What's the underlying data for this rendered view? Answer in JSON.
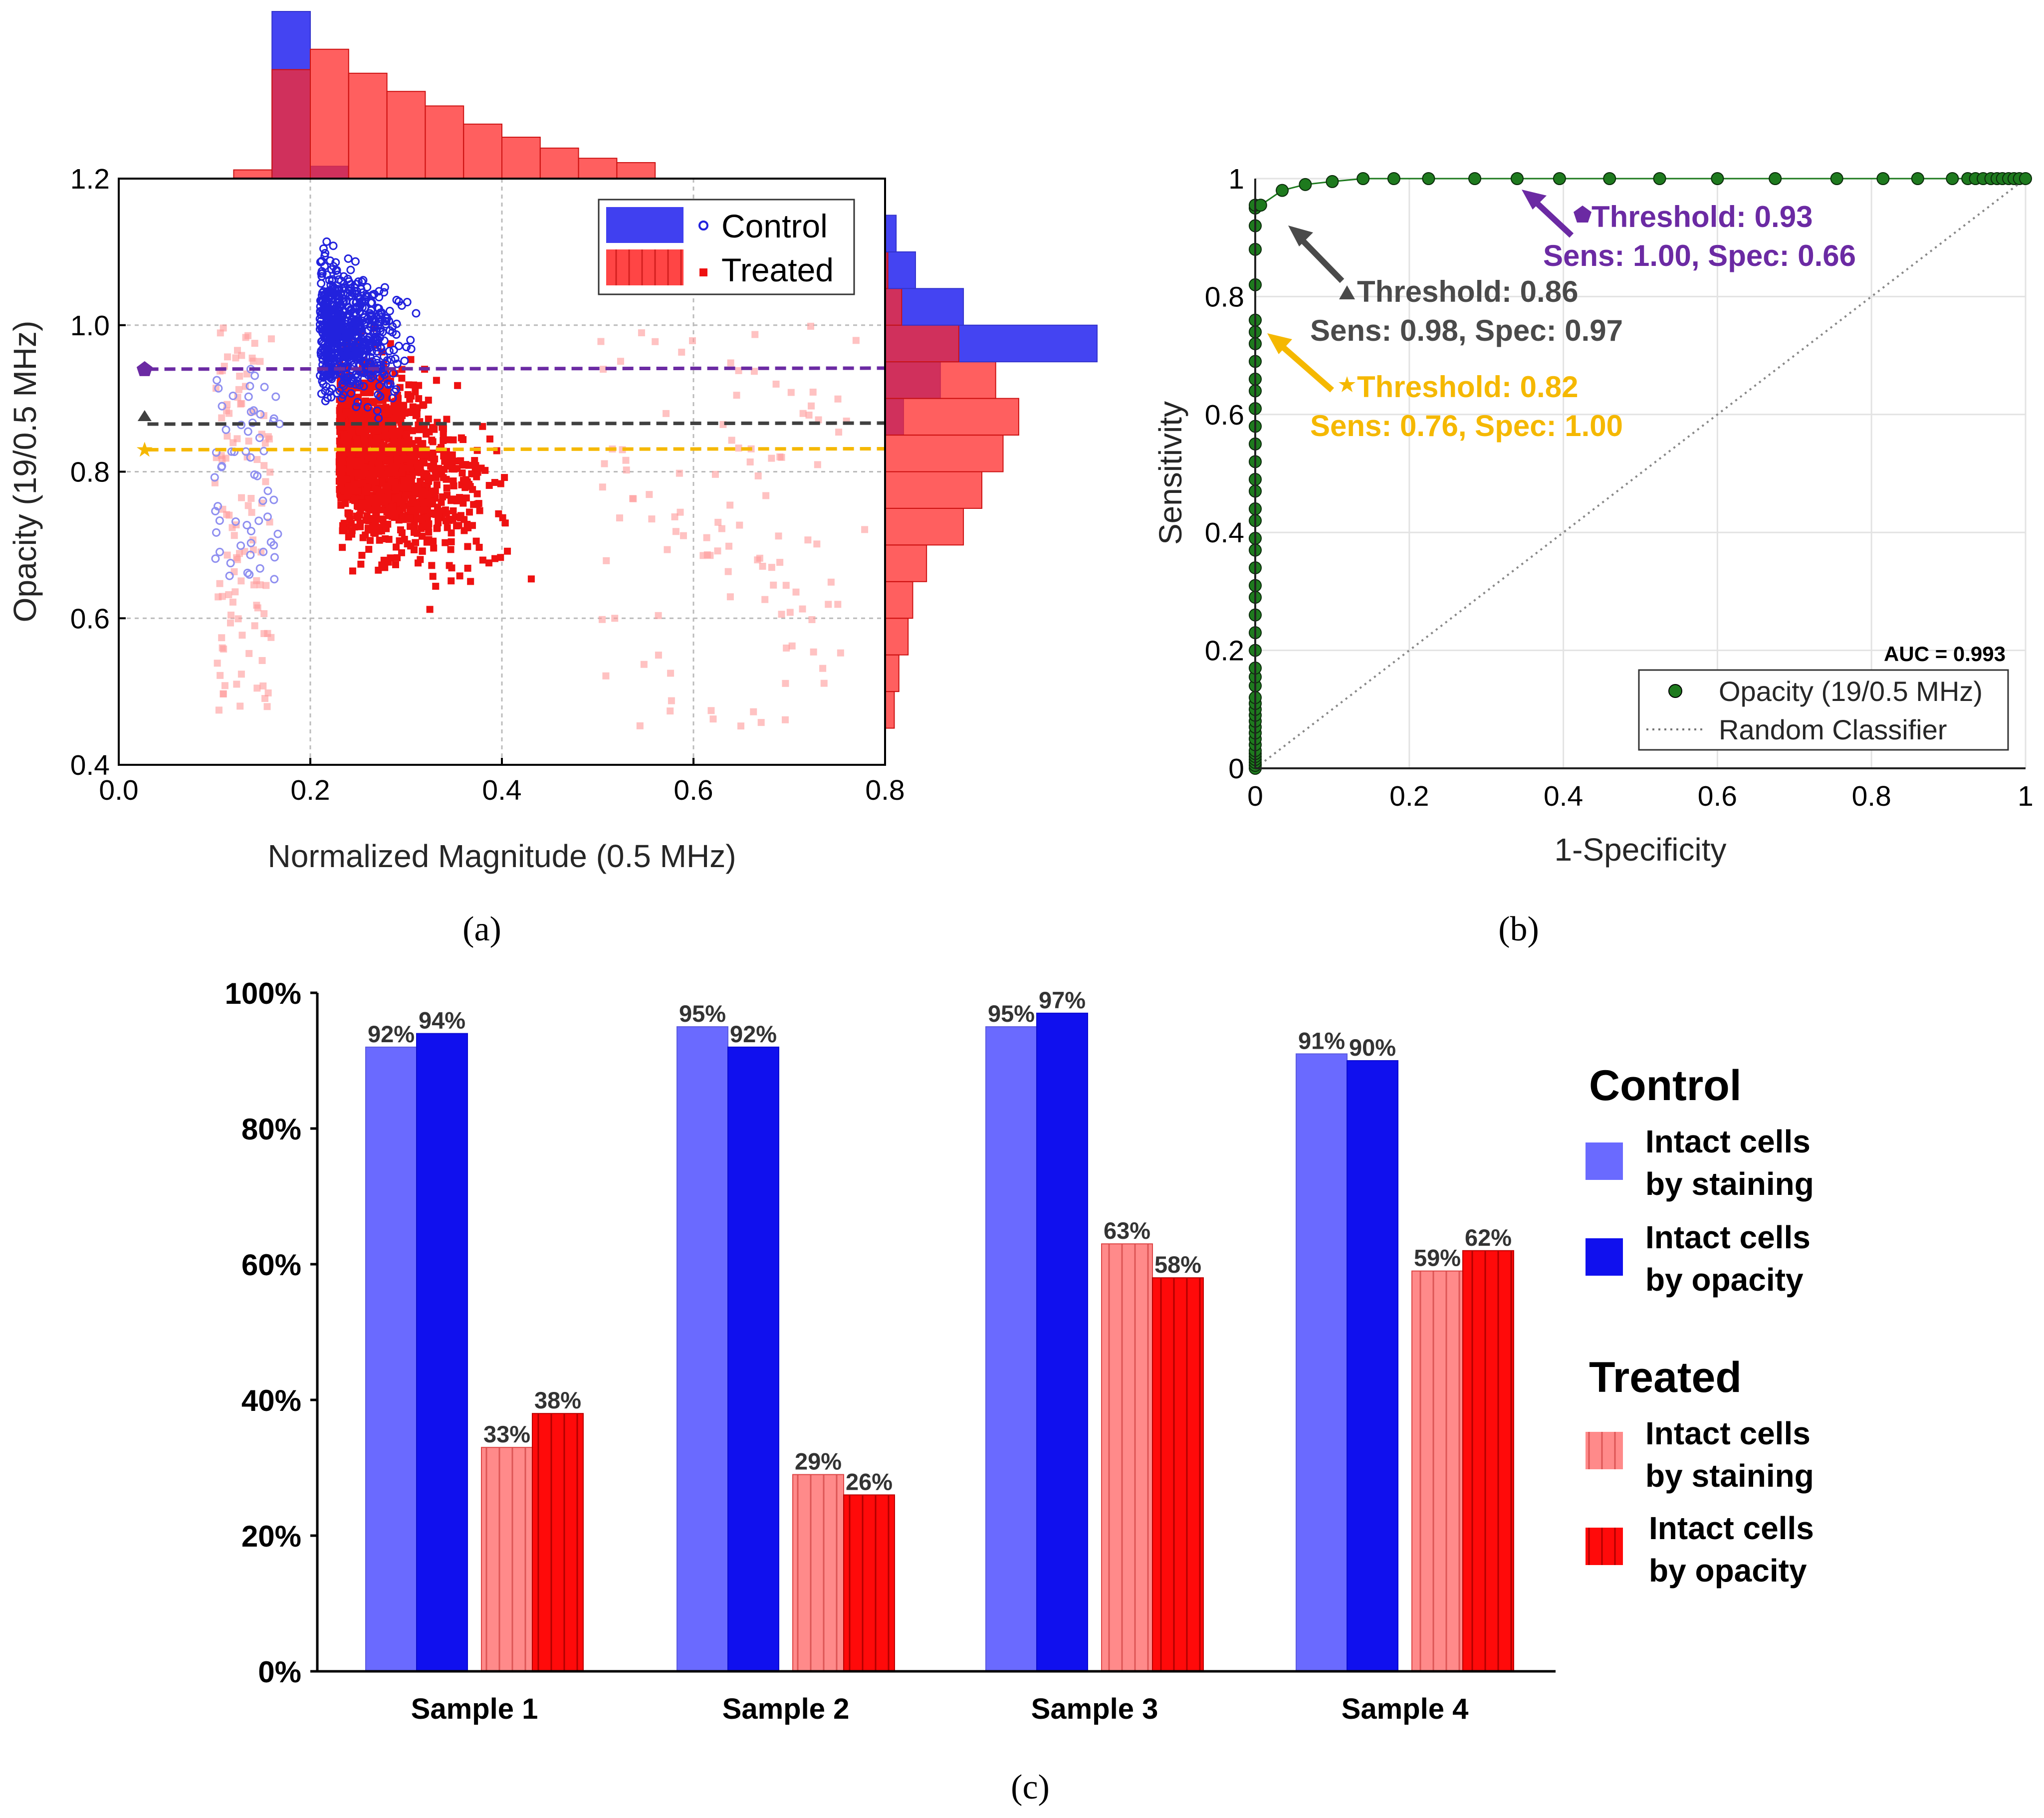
{
  "panel_a": {
    "caption": "(a)",
    "chart_data": {
      "type": "scatter",
      "xlabel": "Normalized Magnitude (0.5 MHz)",
      "ylabel": "Opacity (19/0.5 MHz)",
      "xlim": [
        0.0,
        0.8
      ],
      "ylim": [
        0.4,
        1.2
      ],
      "xticks": [
        "0.0",
        "0.2",
        "0.4",
        "0.6",
        "0.8"
      ],
      "yticks": [
        "0.4",
        "0.6",
        "0.8",
        "1.0",
        "1.2"
      ],
      "legend": [
        "Control",
        "Treated"
      ],
      "thresholds": [
        {
          "name": "Threshold 0.93",
          "y": 0.94,
          "color": "#6b2aa3",
          "marker": "pentagon"
        },
        {
          "name": "Threshold 0.86",
          "y": 0.865,
          "color": "#404040",
          "marker": "triangle"
        },
        {
          "name": "Threshold 0.82",
          "y": 0.83,
          "color": "#f5b800",
          "marker": "star"
        }
      ],
      "top_histogram": {
        "bin_edges": [
          0.12,
          0.16,
          0.2,
          0.24,
          0.28,
          0.32,
          0.36,
          0.4,
          0.44,
          0.48,
          0.52,
          0.56
        ],
        "control_counts": [
          1,
          230,
          17,
          0,
          0,
          0,
          0,
          0,
          0,
          0,
          0
        ],
        "treated_counts": [
          12,
          150,
          178,
          145,
          120,
          100,
          75,
          57,
          42,
          28,
          22
        ]
      },
      "right_histogram": {
        "bin_edges": [
          0.45,
          0.5,
          0.55,
          0.6,
          0.65,
          0.7,
          0.75,
          0.8,
          0.85,
          0.9,
          0.95,
          1.0,
          1.05,
          1.1,
          1.15
        ],
        "control_counts": [
          0,
          0,
          0,
          0,
          0,
          0,
          0,
          0,
          20,
          60,
          230,
          85,
          33,
          12
        ],
        "treated_counts": [
          10,
          15,
          25,
          30,
          45,
          85,
          105,
          128,
          145,
          120,
          80,
          18,
          3,
          0
        ]
      },
      "series": [
        {
          "name": "Control",
          "color": "#2222dd",
          "marker": "circle"
        },
        {
          "name": "Treated",
          "color": "#ee1111",
          "marker": "square"
        }
      ]
    }
  },
  "panel_b": {
    "caption": "(b)",
    "chart_data": {
      "type": "line",
      "xlabel": "1-Specificity",
      "ylabel": "Sensitivity",
      "xlim": [
        0,
        1
      ],
      "ylim": [
        0,
        1
      ],
      "xticks": [
        "0",
        "0.2",
        "0.4",
        "0.6",
        "0.8",
        "1"
      ],
      "yticks": [
        "0",
        "0.2",
        "0.4",
        "0.6",
        "0.8",
        "1"
      ],
      "auc_label": "AUC = 0.993",
      "legend": [
        "Opacity (19/0.5 MHz)",
        "Random Classifier"
      ],
      "series": [
        {
          "name": "Opacity (19/0.5 MHz)",
          "color": "#1e7a1e",
          "x": [
            0,
            0,
            0,
            0,
            0,
            0,
            0,
            0,
            0,
            0,
            0,
            0,
            0,
            0,
            0,
            0,
            0,
            0,
            0,
            0,
            0,
            0,
            0,
            0,
            0,
            0,
            0,
            0,
            0,
            0,
            0,
            0,
            0,
            0,
            0,
            0,
            0,
            0,
            0,
            0,
            0,
            0,
            0,
            0,
            0,
            0,
            0.007,
            0.035,
            0.065,
            0.1,
            0.14,
            0.18,
            0.225,
            0.285,
            0.34,
            0.395,
            0.46,
            0.525,
            0.6,
            0.675,
            0.755,
            0.815,
            0.86,
            0.905,
            0.925,
            0.935,
            0.945,
            0.955,
            0.963,
            0.97,
            0.978,
            0.985,
            0.992,
            1.0
          ],
          "y": [
            0,
            0.005,
            0.01,
            0.015,
            0.02,
            0.025,
            0.03,
            0.04,
            0.05,
            0.06,
            0.07,
            0.08,
            0.09,
            0.1,
            0.11,
            0.12,
            0.14,
            0.155,
            0.17,
            0.2,
            0.23,
            0.26,
            0.29,
            0.31,
            0.34,
            0.37,
            0.39,
            0.42,
            0.44,
            0.47,
            0.49,
            0.52,
            0.55,
            0.58,
            0.61,
            0.64,
            0.66,
            0.69,
            0.72,
            0.74,
            0.76,
            0.82,
            0.88,
            0.92,
            0.95,
            0.955,
            0.955,
            0.98,
            0.99,
            0.995,
            1,
            1,
            1,
            1,
            1,
            1,
            1,
            1,
            1,
            1,
            1,
            1,
            1,
            1,
            1,
            1,
            1,
            1,
            1,
            1,
            1,
            1,
            1,
            1
          ]
        },
        {
          "name": "Random Classifier",
          "color": "#888888",
          "x": [
            0,
            1
          ],
          "y": [
            0,
            1
          ]
        }
      ],
      "annotations": [
        {
          "line1": "Threshold: 0.93",
          "line2": "Sens: 1.00, Spec: 0.66",
          "color": "#6b2aa3",
          "marker": "pentagon",
          "point": [
            0.34,
            1.0
          ]
        },
        {
          "line1": "Threshold: 0.86",
          "line2": "Sens: 0.98, Spec: 0.97",
          "color": "#4a4a4a",
          "marker": "triangle",
          "point": [
            0.035,
            0.98
          ]
        },
        {
          "line1": "Threshold: 0.82",
          "line2": "Sens: 0.76, Spec: 1.00",
          "color": "#f5b800",
          "marker": "star",
          "point": [
            0.0,
            0.76
          ]
        }
      ]
    }
  },
  "panel_c": {
    "caption": "(c)",
    "chart_data": {
      "type": "bar",
      "categories": [
        "Sample 1",
        "Sample 2",
        "Sample 3",
        "Sample 4"
      ],
      "ylim": [
        0,
        100
      ],
      "yticks": [
        "0%",
        "20%",
        "40%",
        "60%",
        "80%",
        "100%"
      ],
      "series": [
        {
          "name": "Control - Intact cells by staining",
          "values": [
            92,
            95,
            95,
            91
          ],
          "labels": [
            "92%",
            "95%",
            "95%",
            "91%"
          ],
          "color": "#6a6aff"
        },
        {
          "name": "Control - Intact cells by opacity",
          "values": [
            94,
            92,
            97,
            90
          ],
          "labels": [
            "94%",
            "92%",
            "97%",
            "90%"
          ],
          "color": "#1010ee"
        },
        {
          "name": "Treated - Intact cells by staining",
          "values": [
            33,
            29,
            63,
            59
          ],
          "labels": [
            "33%",
            "29%",
            "63%",
            "59%"
          ],
          "color": "#ff8a8a"
        },
        {
          "name": "Treated - Intact cells by opacity",
          "values": [
            38,
            26,
            58,
            62
          ],
          "labels": [
            "38%",
            "26%",
            "58%",
            "62%"
          ],
          "color": "#ff0a0a"
        }
      ],
      "legend": {
        "control_heading": "Control",
        "treated_heading": "Treated",
        "items": [
          {
            "line1": "Intact cells",
            "line2": "by staining",
            "color": "#6a6aff"
          },
          {
            "line1": "Intact cells",
            "line2": "by opacity",
            "color": "#1010ee"
          },
          {
            "line1": "Intact cells",
            "line2": "by staining",
            "color": "#ff8a8a"
          },
          {
            "line1": "Intact cells",
            "line2": "by opacity",
            "color": "#ff0a0a"
          }
        ]
      }
    }
  }
}
